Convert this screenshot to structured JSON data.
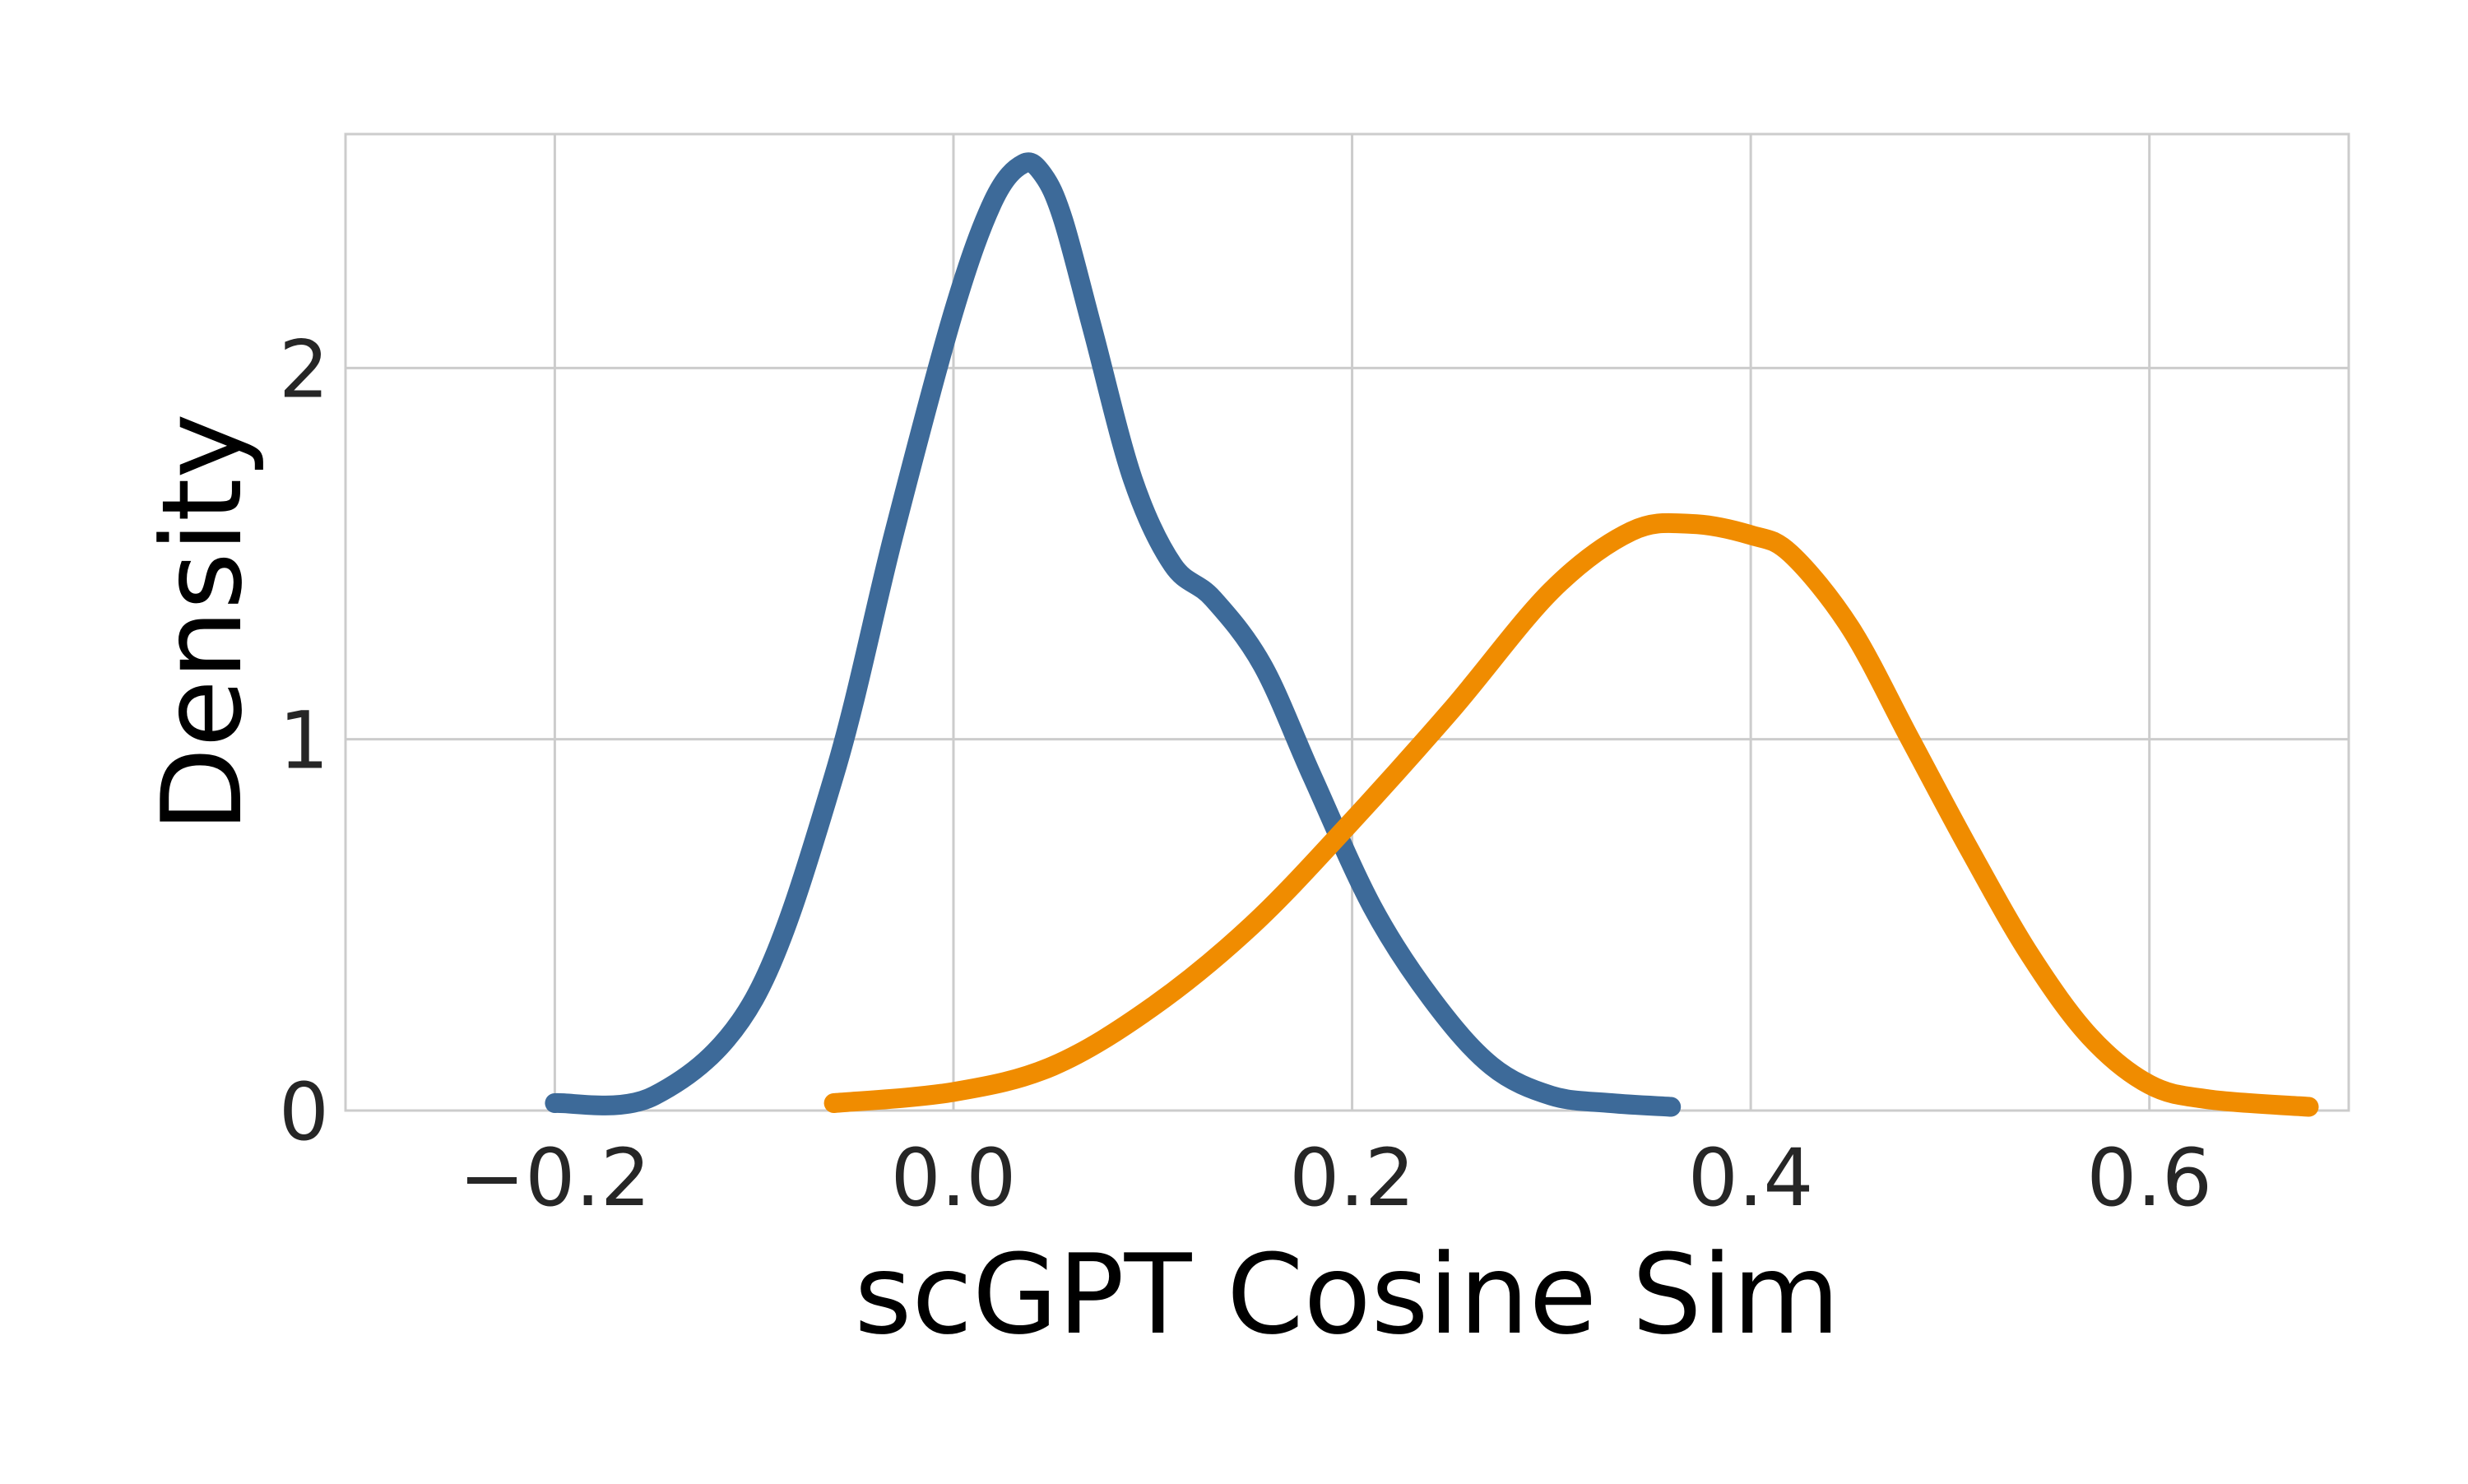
{
  "chart_data": {
    "type": "line",
    "title": "",
    "xlabel": "scGPT Cosine Sim",
    "ylabel": "Density",
    "xlim": [
      -0.305,
      0.7
    ],
    "ylim": [
      0,
      2.63
    ],
    "xticks": [
      -0.2,
      0.0,
      0.2,
      0.4,
      0.6
    ],
    "xtick_labels": [
      "−0.2",
      "0.0",
      "0.2",
      "0.4",
      "0.6"
    ],
    "yticks": [
      0,
      1,
      2
    ],
    "ytick_labels": [
      "0",
      "1",
      "2"
    ],
    "grid": true,
    "legend": "none",
    "series": [
      {
        "color": "#3d6a99",
        "x": [
          -0.2,
          -0.15,
          -0.1,
          -0.06,
          -0.03,
          0.0,
          0.02,
          0.035,
          0.045,
          0.055,
          0.07,
          0.09,
          0.11,
          0.13,
          0.155,
          0.18,
          0.21,
          0.24,
          0.27,
          0.3,
          0.33,
          0.36
        ],
        "y": [
          0.02,
          0.04,
          0.3,
          0.9,
          1.55,
          2.15,
          2.45,
          2.55,
          2.52,
          2.4,
          2.1,
          1.7,
          1.47,
          1.38,
          1.2,
          0.9,
          0.55,
          0.3,
          0.12,
          0.04,
          0.02,
          0.01
        ]
      },
      {
        "color": "#f08c00",
        "x": [
          -0.06,
          0.0,
          0.05,
          0.1,
          0.15,
          0.2,
          0.25,
          0.3,
          0.34,
          0.37,
          0.4,
          0.42,
          0.45,
          0.48,
          0.51,
          0.54,
          0.57,
          0.6,
          0.63,
          0.68
        ],
        "y": [
          0.02,
          0.05,
          0.12,
          0.28,
          0.5,
          0.78,
          1.08,
          1.4,
          1.56,
          1.58,
          1.55,
          1.5,
          1.3,
          1.0,
          0.7,
          0.42,
          0.2,
          0.07,
          0.03,
          0.01
        ]
      }
    ]
  }
}
